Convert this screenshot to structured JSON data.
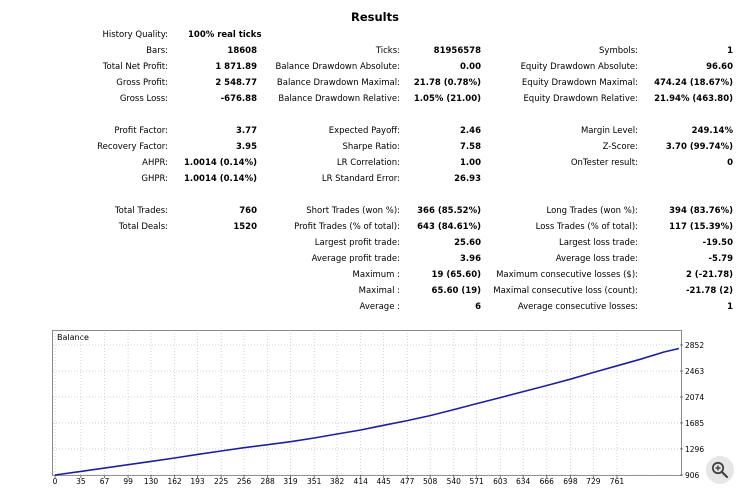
{
  "report": {
    "title": "Results",
    "rows": [
      {
        "label": "History Quality:",
        "value": "100% real ticks",
        "col": 0,
        "row": 0,
        "align": "left"
      },
      {
        "label": "Bars:",
        "value": "18608",
        "col": 0,
        "row": 1
      },
      {
        "label": "Ticks:",
        "value": "81956578",
        "col": 1,
        "row": 1
      },
      {
        "label": "Symbols:",
        "value": "1",
        "col": 2,
        "row": 1
      },
      {
        "label": "Total Net Profit:",
        "value": "1 871.89",
        "col": 0,
        "row": 2
      },
      {
        "label": "Balance Drawdown Absolute:",
        "value": "0.00",
        "col": 1,
        "row": 2
      },
      {
        "label": "Equity Drawdown Absolute:",
        "value": "96.60",
        "col": 2,
        "row": 2
      },
      {
        "label": "Gross Profit:",
        "value": "2 548.77",
        "col": 0,
        "row": 3
      },
      {
        "label": "Balance Drawdown Maximal:",
        "value": "21.78 (0.78%)",
        "col": 1,
        "row": 3
      },
      {
        "label": "Equity Drawdown Maximal:",
        "value": "474.24 (18.67%)",
        "col": 2,
        "row": 3
      },
      {
        "label": "Gross Loss:",
        "value": "-676.88",
        "col": 0,
        "row": 4
      },
      {
        "label": "Balance Drawdown Relative:",
        "value": "1.05% (21.00)",
        "col": 1,
        "row": 4
      },
      {
        "label": "Equity Drawdown Relative:",
        "value": "21.94% (463.80)",
        "col": 2,
        "row": 4
      },
      {
        "label": "Profit Factor:",
        "value": "3.77",
        "col": 0,
        "row": 6
      },
      {
        "label": "Expected Payoff:",
        "value": "2.46",
        "col": 1,
        "row": 6
      },
      {
        "label": "Margin Level:",
        "value": "249.14%",
        "col": 2,
        "row": 6
      },
      {
        "label": "Recovery Factor:",
        "value": "3.95",
        "col": 0,
        "row": 7
      },
      {
        "label": "Sharpe Ratio:",
        "value": "7.58",
        "col": 1,
        "row": 7
      },
      {
        "label": "Z-Score:",
        "value": "3.70 (99.74%)",
        "col": 2,
        "row": 7
      },
      {
        "label": "AHPR:",
        "value": "1.0014 (0.14%)",
        "col": 0,
        "row": 8
      },
      {
        "label": "LR Correlation:",
        "value": "1.00",
        "col": 1,
        "row": 8
      },
      {
        "label": "OnTester result:",
        "value": "0",
        "col": 2,
        "row": 8
      },
      {
        "label": "GHPR:",
        "value": "1.0014 (0.14%)",
        "col": 0,
        "row": 9
      },
      {
        "label": "LR Standard Error:",
        "value": "26.93",
        "col": 1,
        "row": 9
      },
      {
        "label": "Total Trades:",
        "value": "760",
        "col": 0,
        "row": 11
      },
      {
        "label": "Short Trades (won %):",
        "value": "366 (85.52%)",
        "col": 1,
        "row": 11
      },
      {
        "label": "Long Trades (won %):",
        "value": "394 (83.76%)",
        "col": 2,
        "row": 11
      },
      {
        "label": "Total Deals:",
        "value": "1520",
        "col": 0,
        "row": 12
      },
      {
        "label": "Profit Trades (% of total):",
        "value": "643 (84.61%)",
        "col": 1,
        "row": 12
      },
      {
        "label": "Loss Trades (% of total):",
        "value": "117 (15.39%)",
        "col": 2,
        "row": 12
      },
      {
        "label": "Largest profit trade:",
        "value": "25.60",
        "col": 1,
        "row": 13
      },
      {
        "label": "Largest loss trade:",
        "value": "-19.50",
        "col": 2,
        "row": 13
      },
      {
        "label": "Average profit trade:",
        "value": "3.96",
        "col": 1,
        "row": 14
      },
      {
        "label": "Average loss trade:",
        "value": "-5.79",
        "col": 2,
        "row": 14
      },
      {
        "label": "Maximum :",
        "value": "19 (65.60)",
        "col": 1,
        "row": 15
      },
      {
        "label": "Maximum consecutive losses ($):",
        "value": "2 (-21.78)",
        "col": 2,
        "row": 15
      },
      {
        "label": "Maximal :",
        "value": "65.60 (19)",
        "col": 1,
        "row": 16
      },
      {
        "label": "Maximal consecutive loss (count):",
        "value": "-21.78 (2)",
        "col": 2,
        "row": 16
      },
      {
        "label": "Average :",
        "value": "6",
        "col": 1,
        "row": 17
      },
      {
        "label": "Average consecutive losses:",
        "value": "1",
        "col": 2,
        "row": 17
      }
    ]
  },
  "chart_data": {
    "type": "line",
    "title": "Balance",
    "series": [
      {
        "name": "",
        "color": "#1f1f9e",
        "points": [
          [
            0,
            906
          ],
          [
            35,
            960
          ],
          [
            67,
            1010
          ],
          [
            99,
            1060
          ],
          [
            130,
            1110
          ],
          [
            162,
            1160
          ],
          [
            193,
            1215
          ],
          [
            225,
            1265
          ],
          [
            256,
            1315
          ],
          [
            288,
            1360
          ],
          [
            319,
            1405
          ],
          [
            351,
            1460
          ],
          [
            382,
            1520
          ],
          [
            414,
            1580
          ],
          [
            445,
            1650
          ],
          [
            477,
            1720
          ],
          [
            508,
            1795
          ],
          [
            540,
            1885
          ],
          [
            571,
            1975
          ],
          [
            603,
            2065
          ],
          [
            634,
            2155
          ],
          [
            666,
            2245
          ],
          [
            698,
            2340
          ],
          [
            729,
            2440
          ],
          [
            761,
            2540
          ],
          [
            793,
            2640
          ],
          [
            824,
            2745
          ],
          [
            845,
            2800
          ]
        ]
      }
    ],
    "x_ticks": [
      0,
      35,
      67,
      99,
      130,
      162,
      193,
      225,
      256,
      288,
      319,
      351,
      382,
      414,
      445,
      477,
      508,
      540,
      571,
      603,
      634,
      666,
      698,
      729,
      761
    ],
    "y_ticks": [
      906,
      1296,
      1685,
      2074,
      2463,
      2852
    ],
    "xlim": [
      0,
      845
    ],
    "ylim": [
      906,
      2852
    ],
    "grid": true
  },
  "controls": {
    "zoom_icon": "zoom-in-icon"
  }
}
